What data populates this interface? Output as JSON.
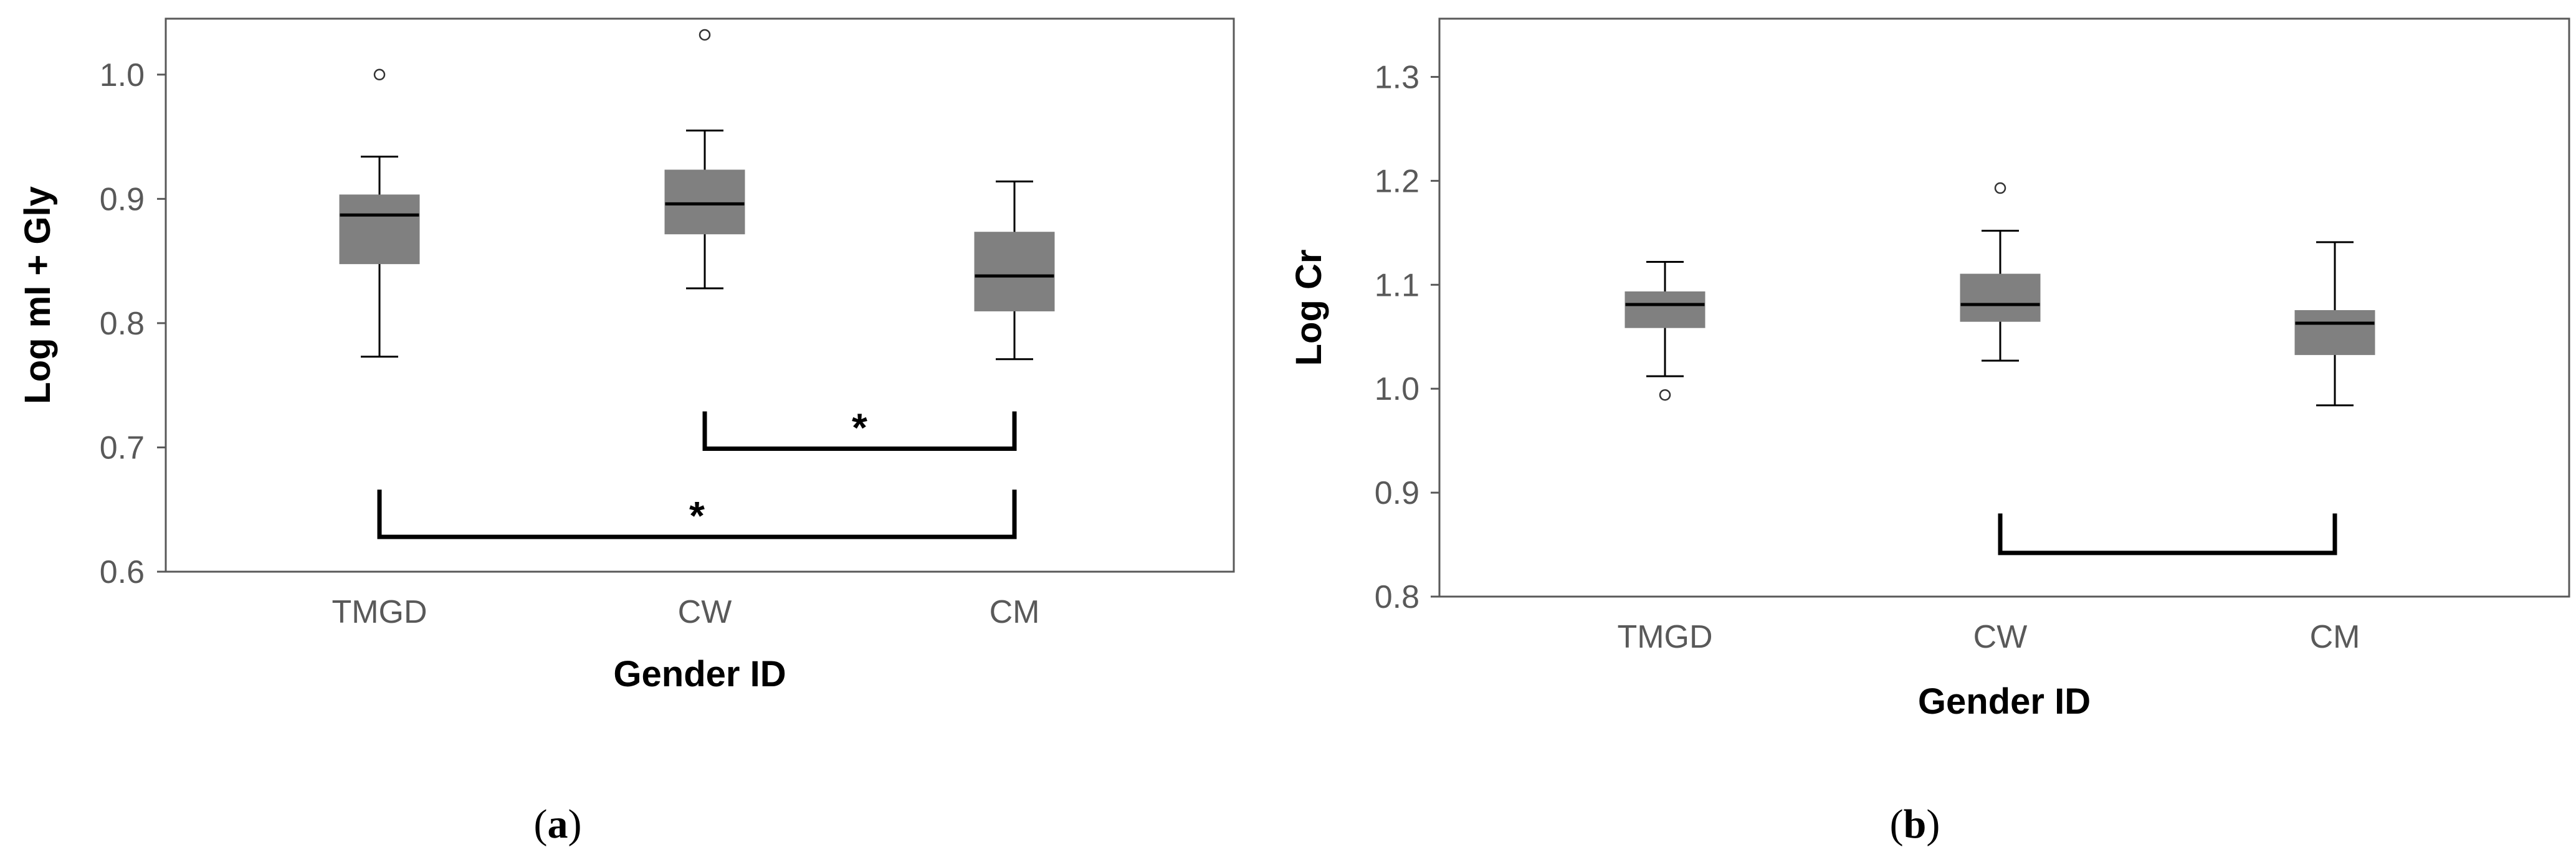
{
  "colors": {
    "box_fill": "#808080",
    "axis": "#595959",
    "text": "#000000"
  },
  "chart_data": [
    {
      "type": "box",
      "panel_label": "a",
      "xlabel": "Gender ID",
      "ylabel": "Log mI + Gly",
      "ylim": [
        0.6,
        1.045
      ],
      "yticks": [
        {
          "v": 0.6,
          "label": "0.6"
        },
        {
          "v": 0.7,
          "label": "0.7"
        },
        {
          "v": 0.8,
          "label": "0.8"
        },
        {
          "v": 0.9,
          "label": "0.9"
        },
        {
          "v": 1.0,
          "label": "1.0"
        }
      ],
      "categories": [
        "TMGD",
        "CW",
        "CM"
      ],
      "boxes": [
        {
          "category": "TMGD",
          "whisker_low": 0.773,
          "q1": 0.848,
          "median": 0.887,
          "q3": 0.903,
          "whisker_high": 0.934,
          "outliers": [
            1.0
          ]
        },
        {
          "category": "CW",
          "whisker_low": 0.828,
          "q1": 0.872,
          "median": 0.896,
          "q3": 0.923,
          "whisker_high": 0.955,
          "outliers": [
            1.032
          ]
        },
        {
          "category": "CM",
          "whisker_low": 0.771,
          "q1": 0.81,
          "median": 0.838,
          "q3": 0.873,
          "whisker_high": 0.914,
          "outliers": []
        }
      ],
      "brackets": [
        {
          "from": "CW",
          "to": "CM",
          "arm_top": 0.729,
          "bar": 0.699,
          "label": "*"
        },
        {
          "from": "TMGD",
          "to": "CM",
          "arm_top": 0.666,
          "bar": 0.628,
          "label": "*"
        }
      ]
    },
    {
      "type": "box",
      "panel_label": "b",
      "xlabel": "Gender ID",
      "ylabel": "Log Cr",
      "ylim": [
        0.8,
        1.356
      ],
      "yticks": [
        {
          "v": 0.8,
          "label": "0.8"
        },
        {
          "v": 0.9,
          "label": "0.9"
        },
        {
          "v": 1.0,
          "label": "1.0"
        },
        {
          "v": 1.1,
          "label": "1.1"
        },
        {
          "v": 1.2,
          "label": "1.2"
        },
        {
          "v": 1.3,
          "label": "1.3"
        }
      ],
      "categories": [
        "TMGD",
        "CW",
        "CM"
      ],
      "boxes": [
        {
          "category": "TMGD",
          "whisker_low": 1.012,
          "q1": 1.059,
          "median": 1.081,
          "q3": 1.093,
          "whisker_high": 1.122,
          "outliers": [
            0.994
          ]
        },
        {
          "category": "CW",
          "whisker_low": 1.027,
          "q1": 1.065,
          "median": 1.081,
          "q3": 1.11,
          "whisker_high": 1.152,
          "outliers": [
            1.193
          ]
        },
        {
          "category": "CM",
          "whisker_low": 0.984,
          "q1": 1.033,
          "median": 1.063,
          "q3": 1.075,
          "whisker_high": 1.141,
          "outliers": []
        }
      ],
      "brackets": [
        {
          "from": "CW",
          "to": "CM",
          "arm_top": 0.88,
          "bar": 0.842,
          "label": ""
        }
      ]
    }
  ]
}
